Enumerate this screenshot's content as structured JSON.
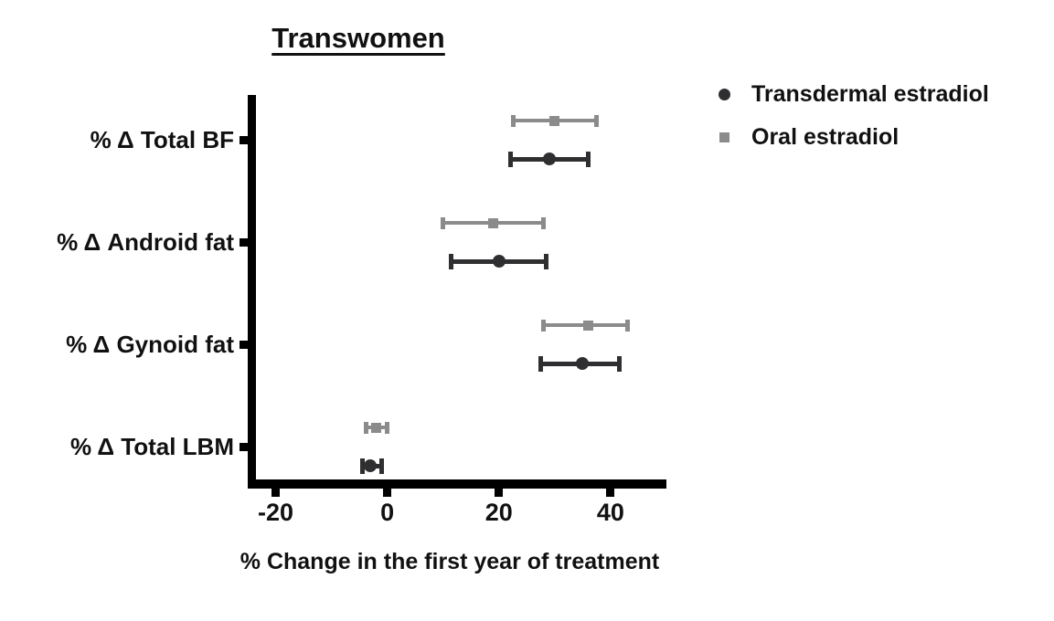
{
  "title": "Transwomen",
  "legend": {
    "items": [
      {
        "label": "Transdermal estradiol",
        "marker": "circle",
        "color": "#2f2f31"
      },
      {
        "label": "Oral estradiol",
        "marker": "square",
        "color": "#8b8b8b"
      }
    ]
  },
  "chart_data": {
    "type": "scatter",
    "subtype": "horizontal-forest-plot-with-error-bars",
    "title": "Transwomen",
    "xlabel": "% Change in the first year of treatment",
    "ylabel": "",
    "xlim": [
      -25,
      50
    ],
    "xticks": [
      -20,
      0,
      20,
      40
    ],
    "grid": false,
    "legend_position": "top-right-outside",
    "axis_color": "#000000",
    "background_color": "#ffffff",
    "categories": [
      "% Δ Total BF",
      "% Δ Android fat",
      "% Δ Gynoid fat",
      "% Δ Total LBM"
    ],
    "series": [
      {
        "name": "Oral estradiol",
        "marker": "square",
        "color": "#8b8b8b",
        "row_position": "upper",
        "points": [
          {
            "category": "% Δ Total BF",
            "value": 30,
            "low": 22.5,
            "high": 37.5
          },
          {
            "category": "% Δ Android fat",
            "value": 19,
            "low": 10,
            "high": 28
          },
          {
            "category": "% Δ Gynoid fat",
            "value": 36,
            "low": 28,
            "high": 43
          },
          {
            "category": "% Δ Total LBM",
            "value": -2,
            "low": -3.8,
            "high": 0
          }
        ]
      },
      {
        "name": "Transdermal estradiol",
        "marker": "circle",
        "color": "#2f2f31",
        "row_position": "lower",
        "points": [
          {
            "category": "% Δ Total BF",
            "value": 29,
            "low": 22,
            "high": 36
          },
          {
            "category": "% Δ Android fat",
            "value": 20,
            "low": 11.5,
            "high": 28.5
          },
          {
            "category": "% Δ Gynoid fat",
            "value": 35,
            "low": 27.5,
            "high": 41.5
          },
          {
            "category": "% Δ Total LBM",
            "value": -3,
            "low": -4.5,
            "high": -1
          }
        ]
      }
    ]
  }
}
